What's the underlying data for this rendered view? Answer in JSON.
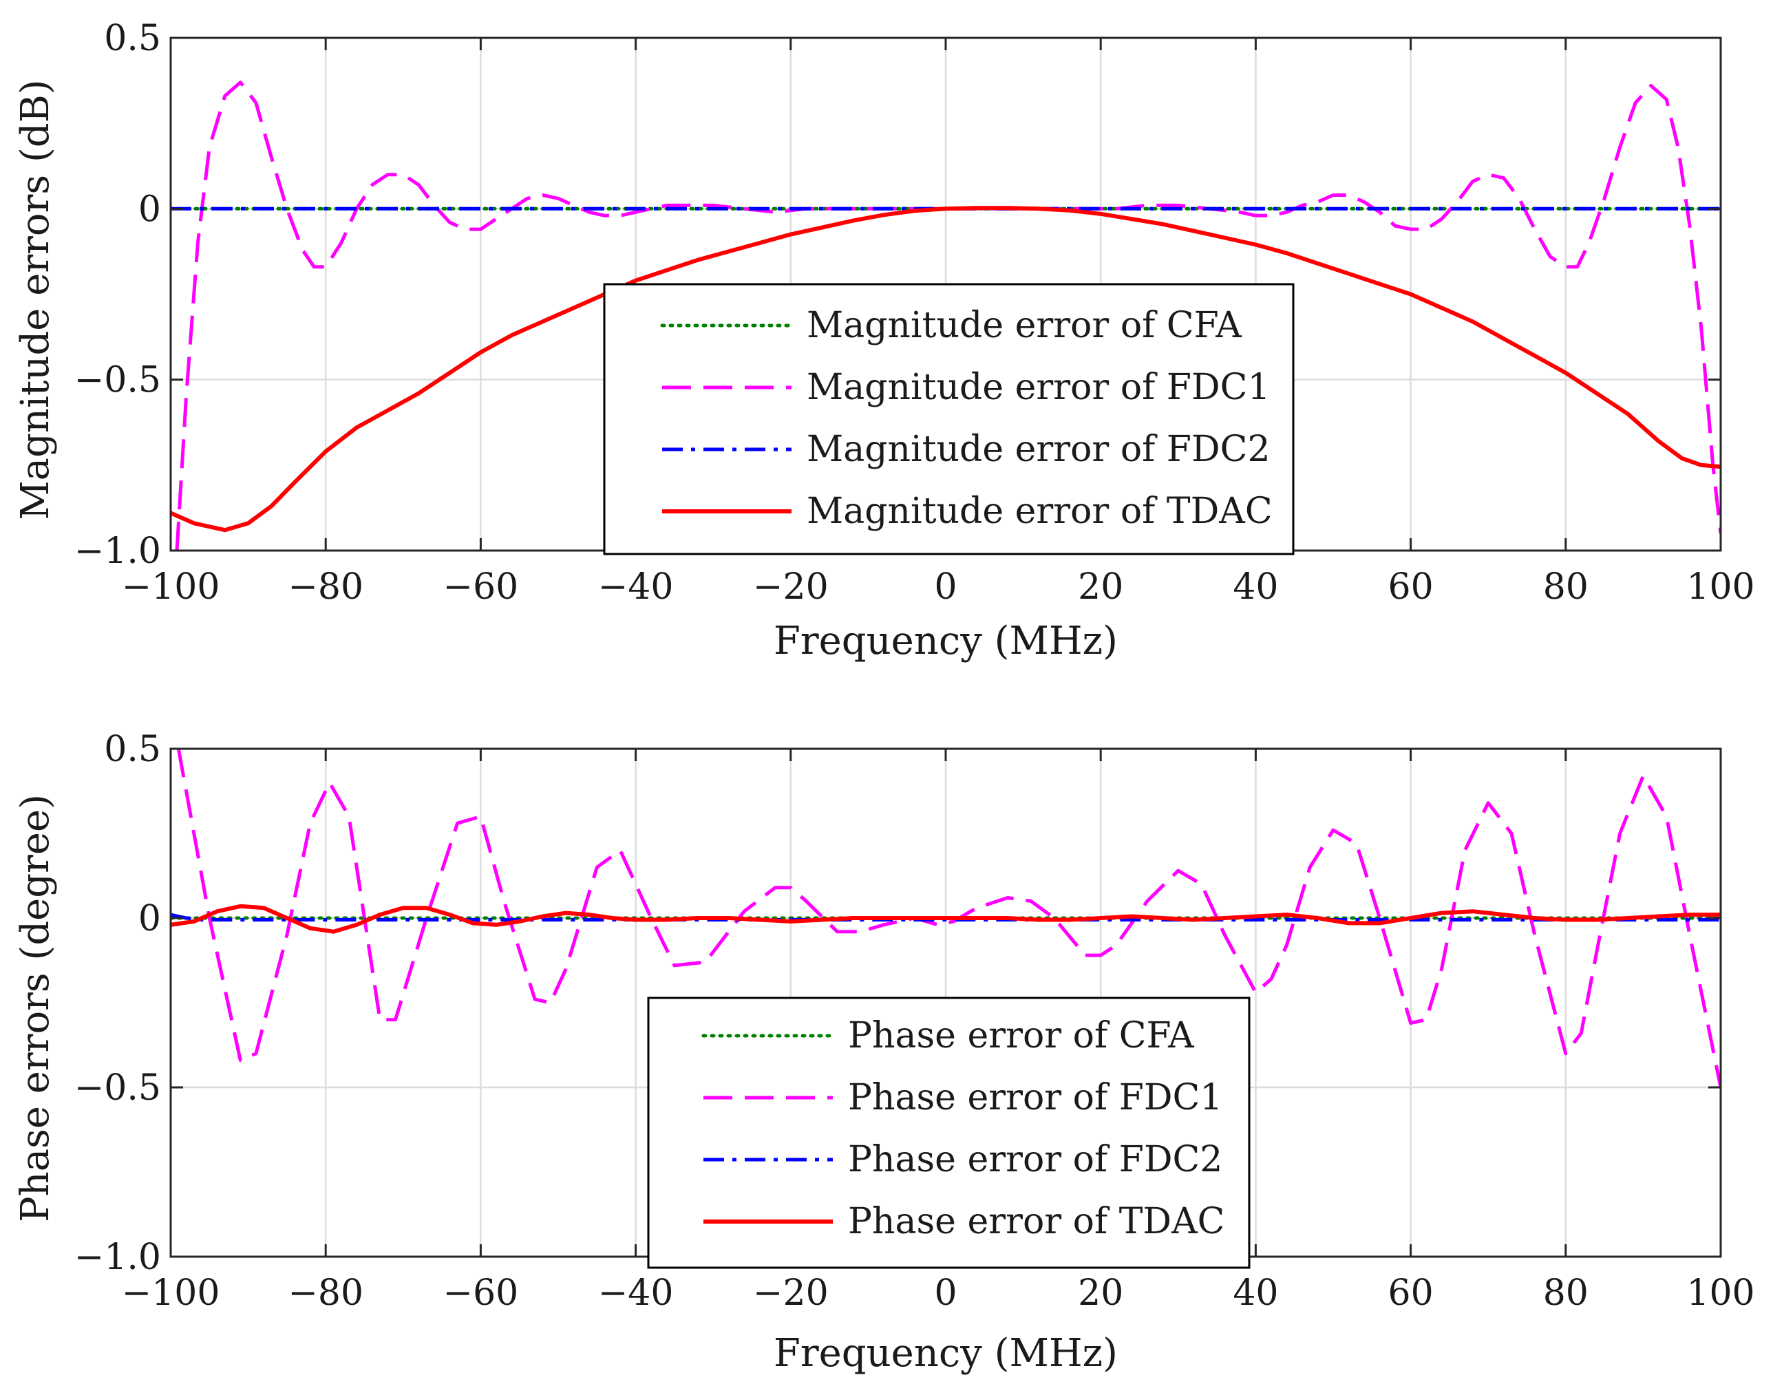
{
  "chart_data": [
    {
      "type": "line",
      "id": "magnitude",
      "title": "",
      "xlabel": "Frequency (MHz)",
      "ylabel": "Magnitude errors (dB)",
      "xlim": [
        -100,
        100
      ],
      "ylim": [
        -1.0,
        0.5
      ],
      "grid": true,
      "legend_position": "center",
      "xticks": [
        -100,
        -80,
        -60,
        -40,
        -20,
        0,
        20,
        40,
        60,
        80,
        100
      ],
      "xtick_labels": [
        "−100",
        "−80",
        "−60",
        "−40",
        "−20",
        "0",
        "20",
        "40",
        "60",
        "80",
        "100"
      ],
      "yticks": [
        -1.0,
        -0.5,
        0,
        0.5
      ],
      "ytick_labels": [
        "−1.0",
        "−0.5",
        "0",
        "0.5"
      ],
      "series": [
        {
          "name": "Magnitude error of CFA",
          "color": "#008000",
          "dash": "dotted",
          "x": [
            -100,
            100
          ],
          "y": [
            0,
            0
          ]
        },
        {
          "name": "Magnitude error of FDC1",
          "color": "#ff00ff",
          "dash": "dashed",
          "x": [
            -99.2,
            -98,
            -96.5,
            -95,
            -93,
            -91,
            -89,
            -87,
            -85,
            -83,
            -81.5,
            -80,
            -78,
            -76,
            -74,
            -72,
            -70,
            -68,
            -66,
            -64,
            -62,
            -60,
            -58,
            -56,
            -54,
            -52,
            -50,
            -48,
            -46,
            -44,
            -42,
            -40,
            -38,
            -36,
            -34,
            -32,
            -30,
            -26,
            -22,
            -18,
            -14,
            -10,
            -6,
            -2,
            2,
            6,
            10,
            14,
            18,
            22,
            26,
            30,
            34,
            38,
            40,
            42,
            44,
            46,
            48,
            50,
            52,
            54,
            56,
            58,
            60,
            62,
            64,
            66,
            68,
            70,
            72,
            74,
            76,
            78,
            80,
            81.5,
            83,
            85,
            87,
            89,
            91,
            93,
            94.5,
            96,
            97.5,
            99,
            100
          ],
          "y": [
            -1.0,
            -0.55,
            -0.1,
            0.18,
            0.33,
            0.37,
            0.31,
            0.15,
            0.0,
            -0.12,
            -0.17,
            -0.17,
            -0.1,
            0.0,
            0.07,
            0.1,
            0.1,
            0.07,
            0.01,
            -0.04,
            -0.06,
            -0.06,
            -0.03,
            0.0,
            0.03,
            0.04,
            0.03,
            0.01,
            -0.01,
            -0.02,
            -0.02,
            -0.01,
            0.0,
            0.01,
            0.01,
            0.01,
            0.01,
            0.0,
            -0.01,
            0.0,
            0.0,
            0.0,
            0.0,
            0.0,
            0.0,
            0.0,
            0.0,
            0.0,
            0.0,
            0.0,
            0.01,
            0.01,
            0.0,
            -0.01,
            -0.02,
            -0.02,
            -0.01,
            0.01,
            0.02,
            0.04,
            0.04,
            0.02,
            -0.01,
            -0.05,
            -0.06,
            -0.06,
            -0.03,
            0.02,
            0.08,
            0.1,
            0.09,
            0.03,
            -0.06,
            -0.14,
            -0.17,
            -0.17,
            -0.1,
            0.03,
            0.18,
            0.31,
            0.36,
            0.32,
            0.18,
            -0.05,
            -0.35,
            -0.75,
            -0.95
          ]
        },
        {
          "name": "Magnitude error of FDC2",
          "color": "#0000ff",
          "dash": "dashdot",
          "x": [
            -100,
            100
          ],
          "y": [
            0,
            0
          ]
        },
        {
          "name": "Magnitude error of TDAC",
          "color": "#ff0000",
          "dash": "solid",
          "x": [
            -100,
            -97,
            -93,
            -90,
            -87,
            -84,
            -80,
            -76,
            -72,
            -68,
            -64,
            -60,
            -56,
            -52,
            -48,
            -44,
            -40,
            -36,
            -32,
            -28,
            -24,
            -20,
            -16,
            -12,
            -8,
            -4,
            0,
            4,
            8,
            12,
            16,
            20,
            24,
            28,
            32,
            36,
            40,
            44,
            48,
            52,
            56,
            60,
            64,
            68,
            72,
            76,
            80,
            84,
            88,
            92,
            95,
            97.5,
            100
          ],
          "y": [
            -0.89,
            -0.92,
            -0.94,
            -0.92,
            -0.87,
            -0.8,
            -0.71,
            -0.64,
            -0.59,
            -0.54,
            -0.48,
            -0.42,
            -0.37,
            -0.33,
            -0.29,
            -0.25,
            -0.21,
            -0.18,
            -0.15,
            -0.125,
            -0.1,
            -0.075,
            -0.055,
            -0.035,
            -0.018,
            -0.006,
            0.0,
            0.002,
            0.002,
            0.0,
            -0.005,
            -0.015,
            -0.03,
            -0.045,
            -0.065,
            -0.085,
            -0.105,
            -0.13,
            -0.16,
            -0.19,
            -0.22,
            -0.25,
            -0.29,
            -0.33,
            -0.38,
            -0.43,
            -0.48,
            -0.54,
            -0.6,
            -0.68,
            -0.73,
            -0.75,
            -0.755
          ]
        }
      ]
    },
    {
      "type": "line",
      "id": "phase",
      "title": "",
      "xlabel": "Frequency (MHz)",
      "ylabel": "Phase errors (degree)",
      "xlim": [
        -100,
        100
      ],
      "ylim": [
        -1.0,
        0.5
      ],
      "grid": true,
      "legend_position": "bottom-center",
      "xticks": [
        -100,
        -80,
        -60,
        -40,
        -20,
        0,
        20,
        40,
        60,
        80,
        100
      ],
      "xtick_labels": [
        "−100",
        "−80",
        "−60",
        "−40",
        "−20",
        "0",
        "20",
        "40",
        "60",
        "80",
        "100"
      ],
      "yticks": [
        -1.0,
        -0.5,
        0,
        0.5
      ],
      "ytick_labels": [
        "−1.0",
        "−0.5",
        "0",
        "0.5"
      ],
      "series": [
        {
          "name": "Phase error of CFA",
          "color": "#008000",
          "dash": "dotted",
          "x": [
            -100,
            100
          ],
          "y": [
            0,
            0
          ]
        },
        {
          "name": "Phase error of FDC1",
          "color": "#ff00ff",
          "dash": "dashed",
          "x": [
            -99,
            -95,
            -91,
            -89,
            -85,
            -82,
            -79.5,
            -77,
            -73,
            -71,
            -67,
            -63,
            -60,
            -57,
            -53,
            -51,
            -49,
            -45,
            -42,
            -38,
            -35,
            -31,
            -29,
            -26,
            -22,
            -20,
            -18,
            -14,
            -11,
            -8,
            -4,
            -1,
            1,
            4,
            8,
            11,
            14,
            18,
            20,
            22,
            26,
            30,
            33,
            36,
            40,
            42,
            44,
            47,
            50,
            53,
            56,
            60,
            62,
            64,
            67,
            70,
            73,
            76,
            80,
            82,
            84,
            87,
            90,
            93,
            96,
            100
          ],
          "y": [
            0.5,
            0.0,
            -0.42,
            -0.4,
            -0.05,
            0.28,
            0.4,
            0.3,
            -0.3,
            -0.3,
            0.0,
            0.28,
            0.3,
            0.05,
            -0.24,
            -0.25,
            -0.15,
            0.15,
            0.2,
            0.0,
            -0.14,
            -0.13,
            -0.07,
            0.02,
            0.09,
            0.09,
            0.05,
            -0.04,
            -0.04,
            -0.02,
            0.0,
            -0.02,
            -0.01,
            0.03,
            0.06,
            0.05,
            0.0,
            -0.11,
            -0.11,
            -0.08,
            0.05,
            0.14,
            0.1,
            -0.05,
            -0.22,
            -0.18,
            -0.08,
            0.15,
            0.26,
            0.22,
            0.0,
            -0.31,
            -0.3,
            -0.15,
            0.2,
            0.34,
            0.25,
            -0.05,
            -0.4,
            -0.34,
            -0.1,
            0.25,
            0.42,
            0.3,
            -0.05,
            -0.5
          ]
        },
        {
          "name": "Phase error of FDC2",
          "color": "#0000ff",
          "dash": "dashdot",
          "x": [
            -100,
            -98,
            -96,
            100
          ],
          "y": [
            0.01,
            0.0,
            -0.005,
            -0.005
          ]
        },
        {
          "name": "Phase error of TDAC",
          "color": "#ff0000",
          "dash": "solid",
          "x": [
            -100,
            -97,
            -94,
            -91,
            -88,
            -85,
            -82,
            -79,
            -76,
            -73,
            -70,
            -67,
            -64,
            -61,
            -58,
            -55,
            -52,
            -49,
            -46,
            -43,
            -40,
            -36,
            -32,
            -28,
            -24,
            -20,
            -16,
            -12,
            -8,
            -4,
            0,
            4,
            8,
            12,
            16,
            20,
            24,
            28,
            32,
            36,
            40,
            44,
            48,
            52,
            56,
            60,
            64,
            68,
            72,
            76,
            80,
            84,
            88,
            92,
            96,
            100
          ],
          "y": [
            -0.02,
            -0.01,
            0.02,
            0.035,
            0.03,
            0.0,
            -0.03,
            -0.04,
            -0.02,
            0.01,
            0.03,
            0.03,
            0.01,
            -0.015,
            -0.02,
            -0.01,
            0.005,
            0.015,
            0.01,
            0.0,
            -0.005,
            -0.005,
            0.0,
            0.0,
            -0.005,
            -0.01,
            -0.005,
            0.0,
            0.0,
            0.0,
            0.0,
            0.0,
            0.0,
            -0.005,
            -0.005,
            0.0,
            0.005,
            0.0,
            -0.005,
            0.0,
            0.005,
            0.01,
            0.0,
            -0.015,
            -0.015,
            0.0,
            0.015,
            0.02,
            0.01,
            0.0,
            -0.005,
            -0.005,
            0.0,
            0.005,
            0.01,
            0.01
          ]
        }
      ]
    }
  ]
}
